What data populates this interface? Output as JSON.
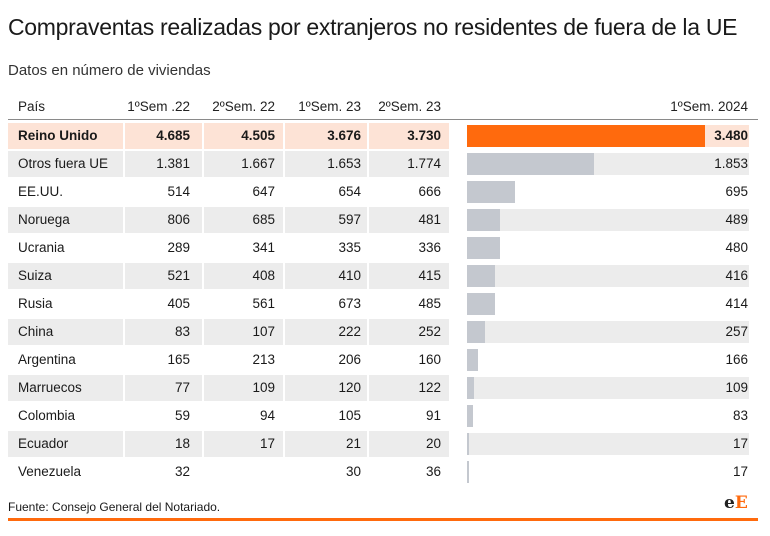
{
  "title": "Compraventas realizadas por extranjeros no residentes de fuera de la UE",
  "subtitle": "Datos en número de viviendas",
  "source": "Fuente: Consejo General del Notariado.",
  "logo": {
    "first": "e",
    "second": "E"
  },
  "colors": {
    "highlight_bar": "#ff6a0d",
    "bar": "#c4c8cf",
    "highlight_row": "#fde3d6",
    "alt_row": "#ececec"
  },
  "chart_data": {
    "type": "table",
    "columns": [
      "País",
      "1ºSem .22",
      "2ºSem. 22",
      "1ºSem. 23",
      "2ºSem. 23",
      "1ºSem. 2024"
    ],
    "bar_column": "1ºSem. 2024",
    "highlighted_row": "Reino Unido",
    "rows": [
      {
        "pais": "Reino Unido",
        "s1_22": "4.685",
        "s2_22": "4.505",
        "s1_23": "3.676",
        "s2_23": "3.730",
        "s1_24": "3.480",
        "value": 3480
      },
      {
        "pais": "Otros fuera UE",
        "s1_22": "1.381",
        "s2_22": "1.667",
        "s1_23": "1.653",
        "s2_23": "1.774",
        "s1_24": "1.853",
        "value": 1853
      },
      {
        "pais": "EE.UU.",
        "s1_22": "514",
        "s2_22": "647",
        "s1_23": "654",
        "s2_23": "666",
        "s1_24": "695",
        "value": 695
      },
      {
        "pais": "Noruega",
        "s1_22": "806",
        "s2_22": "685",
        "s1_23": "597",
        "s2_23": "481",
        "s1_24": "489",
        "value": 489
      },
      {
        "pais": "Ucrania",
        "s1_22": "289",
        "s2_22": "341",
        "s1_23": "335",
        "s2_23": "336",
        "s1_24": "480",
        "value": 480
      },
      {
        "pais": "Suiza",
        "s1_22": "521",
        "s2_22": "408",
        "s1_23": "410",
        "s2_23": "415",
        "s1_24": "416",
        "value": 416
      },
      {
        "pais": "Rusia",
        "s1_22": "405",
        "s2_22": "561",
        "s1_23": "673",
        "s2_23": "485",
        "s1_24": "414",
        "value": 414
      },
      {
        "pais": "China",
        "s1_22": "83",
        "s2_22": "107",
        "s1_23": "222",
        "s2_23": "252",
        "s1_24": "257",
        "value": 257
      },
      {
        "pais": "Argentina",
        "s1_22": "165",
        "s2_22": "213",
        "s1_23": "206",
        "s2_23": "160",
        "s1_24": "166",
        "value": 166
      },
      {
        "pais": "Marruecos",
        "s1_22": "77",
        "s2_22": "109",
        "s1_23": "120",
        "s2_23": "122",
        "s1_24": "109",
        "value": 109
      },
      {
        "pais": "Colombia",
        "s1_22": "59",
        "s2_22": "94",
        "s1_23": "105",
        "s2_23": "91",
        "s1_24": "83",
        "value": 83
      },
      {
        "pais": "Ecuador",
        "s1_22": "18",
        "s2_22": "17",
        "s1_23": "21",
        "s2_23": "20",
        "s1_24": "17",
        "value": 17
      },
      {
        "pais": "Venezuela",
        "s1_22": "32",
        "s2_22": "",
        "s1_23": "30",
        "s2_23": "36",
        "s1_24": "17",
        "value": 17
      }
    ]
  }
}
